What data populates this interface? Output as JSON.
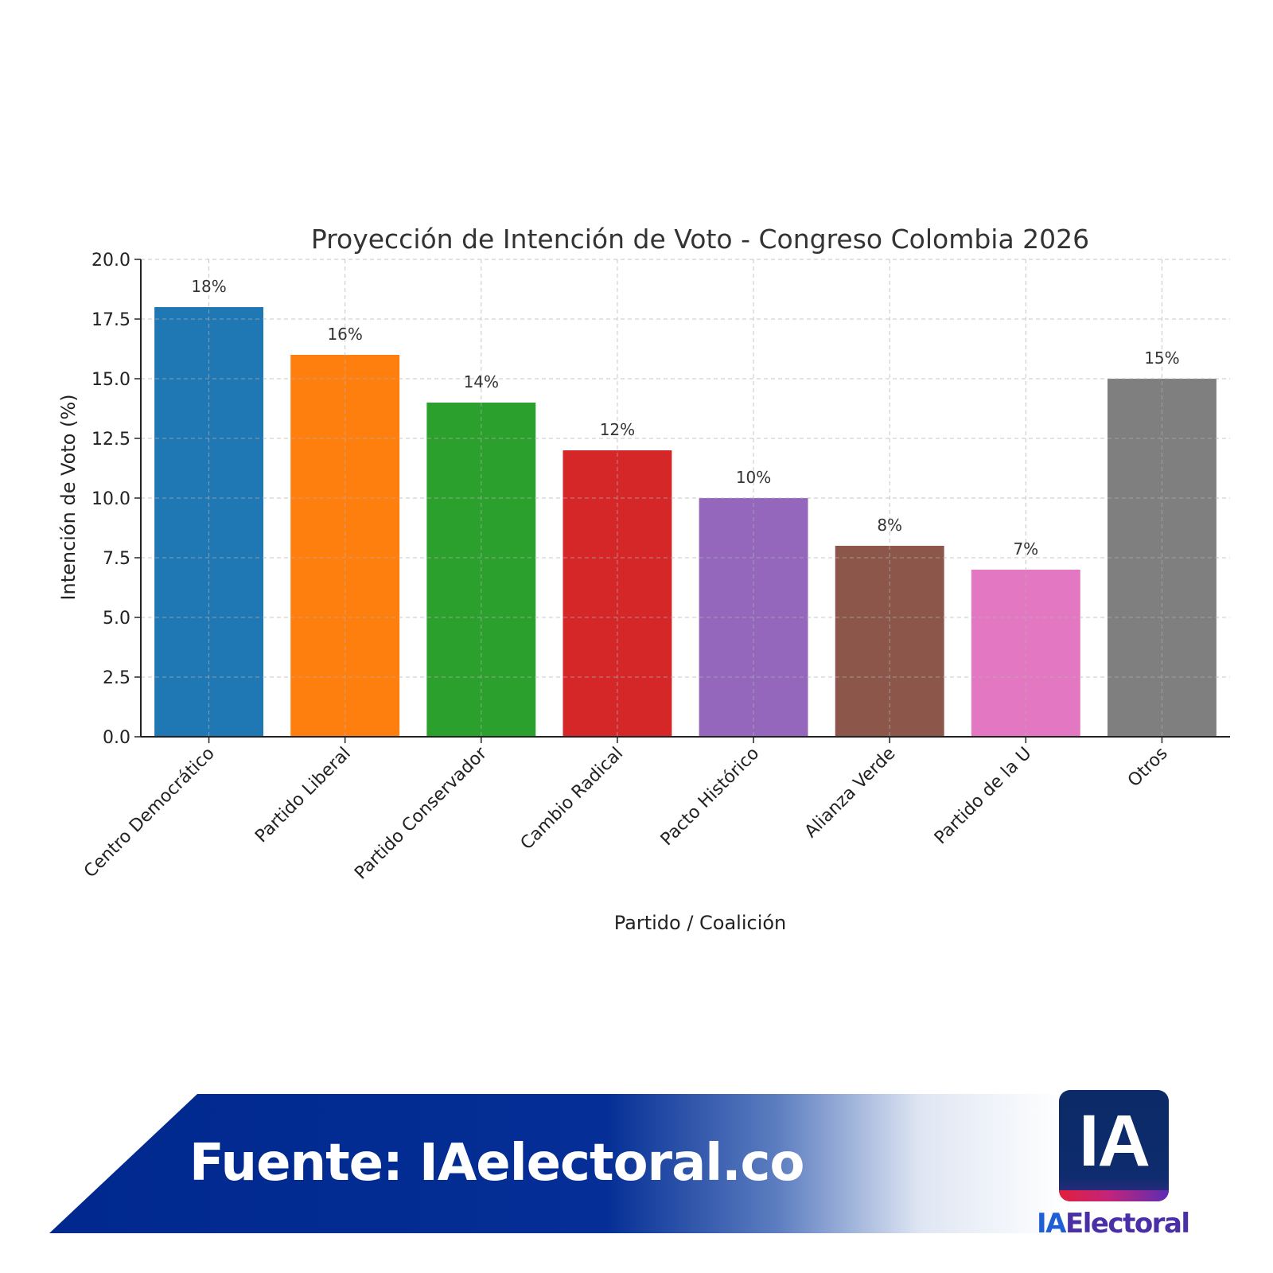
{
  "chart_data": {
    "type": "bar",
    "title": "Proyección de Intención de Voto - Congreso Colombia 2026",
    "xlabel": "Partido / Coalición",
    "ylabel": "Intención de Voto (%)",
    "categories": [
      "Centro Democrático",
      "Partido Liberal",
      "Partido Conservador",
      "Cambio Radical",
      "Pacto Histórico",
      "Alianza Verde",
      "Partido de la U",
      "Otros"
    ],
    "values": [
      18,
      16,
      14,
      12,
      10,
      8,
      7,
      15
    ],
    "value_labels": [
      "18%",
      "16%",
      "14%",
      "12%",
      "10%",
      "8%",
      "7%",
      "15%"
    ],
    "colors": [
      "#1f77b4",
      "#ff7f0e",
      "#2ca02c",
      "#d62728",
      "#9467bd",
      "#8c564b",
      "#e377c2",
      "#7f7f7f"
    ],
    "yticks": [
      "0.0",
      "2.5",
      "5.0",
      "7.5",
      "10.0",
      "12.5",
      "15.0",
      "17.5",
      "20.0"
    ],
    "ytick_values": [
      0,
      2.5,
      5,
      7.5,
      10,
      12.5,
      15,
      17.5,
      20
    ],
    "ylim": [
      0,
      20
    ],
    "grid": true
  },
  "footer": {
    "source_text": "Fuente: IAelectoral.co",
    "logo_mark": "IA",
    "logo_name_part1": "IA",
    "logo_name_part2": "Electoral"
  }
}
